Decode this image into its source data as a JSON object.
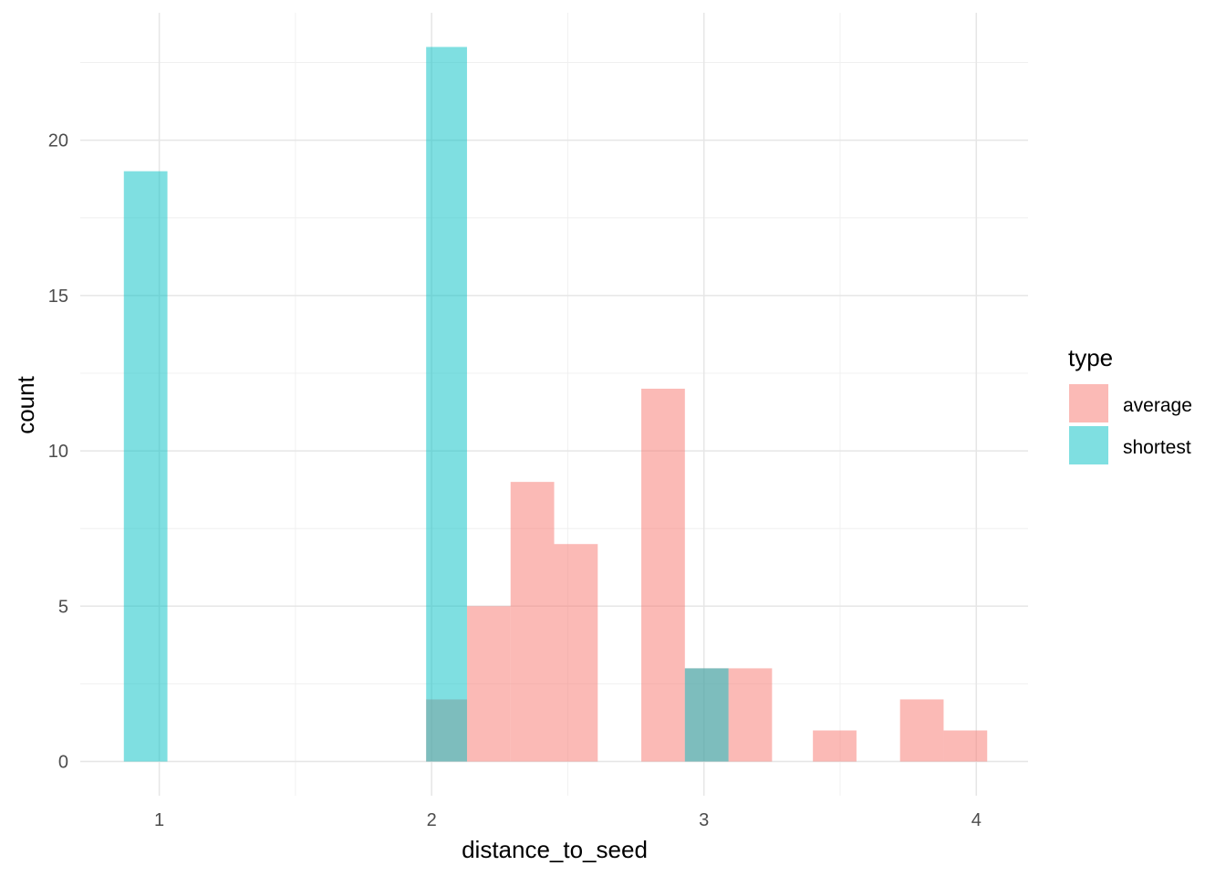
{
  "chart_data": {
    "type": "histogram",
    "xlabel": "distance_to_seed",
    "ylabel": "count",
    "xlim": [
      0.71,
      4.19
    ],
    "ylim": [
      -1.1,
      24.1
    ],
    "x_ticks": [
      1,
      2,
      3,
      4
    ],
    "y_ticks": [
      0,
      5,
      10,
      15,
      20
    ],
    "grid": true,
    "legend": {
      "title": "type",
      "position": "right"
    },
    "bin_width": 0.159,
    "series": [
      {
        "name": "average",
        "color": "#F8766D",
        "bins": [
          {
            "x0": 1.98,
            "x1": 2.13,
            "count": 2
          },
          {
            "x0": 2.13,
            "x1": 2.29,
            "count": 5
          },
          {
            "x0": 2.29,
            "x1": 2.45,
            "count": 9
          },
          {
            "x0": 2.45,
            "x1": 2.61,
            "count": 7
          },
          {
            "x0": 2.77,
            "x1": 2.93,
            "count": 12
          },
          {
            "x0": 2.93,
            "x1": 3.09,
            "count": 3
          },
          {
            "x0": 3.09,
            "x1": 3.25,
            "count": 3
          },
          {
            "x0": 3.4,
            "x1": 3.56,
            "count": 1
          },
          {
            "x0": 3.72,
            "x1": 3.88,
            "count": 2
          },
          {
            "x0": 3.88,
            "x1": 4.04,
            "count": 1
          }
        ]
      },
      {
        "name": "shortest",
        "color": "#00BFC4",
        "bins": [
          {
            "x0": 0.87,
            "x1": 1.03,
            "count": 19
          },
          {
            "x0": 1.98,
            "x1": 2.13,
            "count": 23
          },
          {
            "x0": 2.93,
            "x1": 3.09,
            "count": 3
          }
        ]
      }
    ]
  }
}
